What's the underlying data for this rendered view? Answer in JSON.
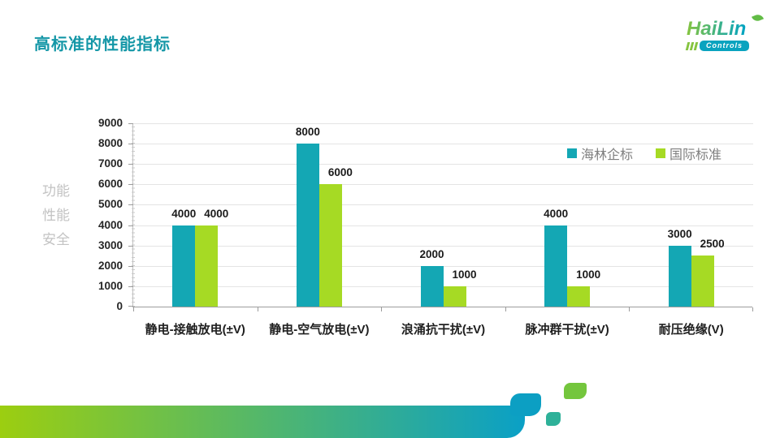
{
  "slide": {
    "title": "高标准的性能指标"
  },
  "logo": {
    "brand": "HaiLin",
    "sub": "Controls"
  },
  "left_caption": {
    "lines": [
      "功能",
      "性能",
      "安全"
    ]
  },
  "chart_data": {
    "type": "bar",
    "title": "",
    "categories": [
      "静电-接触放电(±V)",
      "静电-空气放电(±V)",
      "浪涌抗干扰(±V)",
      "脉冲群干扰(±V)",
      "耐压绝缘(V)"
    ],
    "series": [
      {
        "name": "海林企标",
        "color": "#14a7b4",
        "values": [
          4000,
          8000,
          2000,
          4000,
          3000
        ]
      },
      {
        "name": "国际标准",
        "color": "#a6da24",
        "values": [
          4000,
          6000,
          1000,
          1000,
          2500
        ]
      }
    ],
    "ylim": [
      0,
      9000
    ],
    "ytick_step": 1000,
    "grid": true,
    "legend_position": "top-right",
    "value_labels": true
  },
  "colors": {
    "title": "#1597a7",
    "brand_green": "#86c440",
    "brand_teal": "#00a3c4",
    "leaf_green": "#62bc46",
    "badge_teal": "#0aa3bf",
    "decor_bar_from": "#9cce10",
    "decor_bar_to": "#0aa0c6",
    "decor_squares": [
      "#0c9fc3",
      "#2eb199",
      "#74c63d"
    ]
  }
}
